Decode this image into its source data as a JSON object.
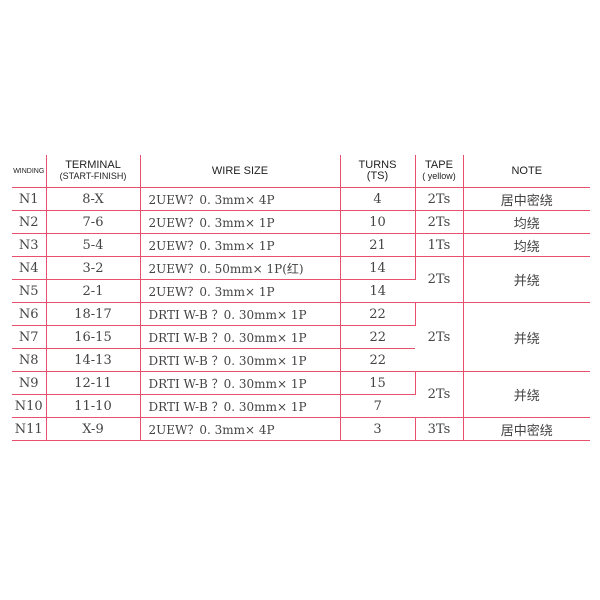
{
  "colors": {
    "grid": "#e8506e",
    "text": "#444444"
  },
  "headers": {
    "winding": "WINDING",
    "terminal": "TERMINAL",
    "terminal_sub": "(START-FINISH)",
    "wire": "WIRE SIZE",
    "turns": "TURNS",
    "turns_sub": "(TS)",
    "tape": "TAPE",
    "tape_sub": "( yellow)",
    "note": "NOTE"
  },
  "rows": [
    {
      "winding": "N1",
      "terminal": "8-X",
      "wire": "2UEW？0. 3mm× 4P",
      "turns": "4",
      "tape": "2Ts",
      "note": "居中密绕"
    },
    {
      "winding": "N2",
      "terminal": "7-6",
      "wire": "2UEW？0. 3mm× 1P",
      "turns": "10",
      "tape": "2Ts",
      "note": "均绕"
    },
    {
      "winding": "N3",
      "terminal": "5-4",
      "wire": "2UEW？0. 3mm× 1P",
      "turns": "21",
      "tape": "1Ts",
      "note": "均绕"
    },
    {
      "winding": "N4",
      "terminal": "3-2",
      "wire": "2UEW？0. 50mm× 1P(红)",
      "turns": "14",
      "tape": "2Ts",
      "note": "并绕"
    },
    {
      "winding": "N5",
      "terminal": "2-1",
      "wire": "2UEW？0. 3mm× 1P",
      "turns": "14"
    },
    {
      "winding": "N6",
      "terminal": "18-17",
      "wire": "DRTI W-B ？0. 30mm× 1P",
      "turns": "22",
      "tape": "2Ts",
      "note": "并绕"
    },
    {
      "winding": "N7",
      "terminal": "16-15",
      "wire": "DRTI W-B ？0. 30mm× 1P",
      "turns": "22"
    },
    {
      "winding": "N8",
      "terminal": "14-13",
      "wire": "DRTI W-B ？0. 30mm× 1P",
      "turns": "22"
    },
    {
      "winding": "N9",
      "terminal": "12-11",
      "wire": "DRTI W-B ？0. 30mm× 1P",
      "turns": "15",
      "tape": "2Ts",
      "note": "并绕"
    },
    {
      "winding": "N10",
      "terminal": "11-10",
      "wire": "DRTI W-B ？0. 30mm× 1P",
      "turns": "7"
    },
    {
      "winding": "N11",
      "terminal": "X-9",
      "wire": "2UEW？0. 3mm× 4P",
      "turns": "3",
      "tape": "3Ts",
      "note": "居中密绕"
    }
  ]
}
